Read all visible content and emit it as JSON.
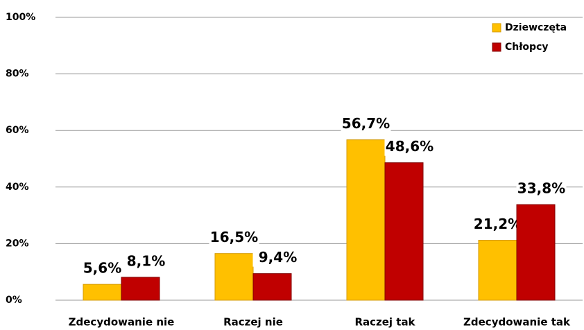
{
  "chart_data": {
    "type": "bar",
    "categories": [
      "Zdecydowanie nie",
      "Raczej nie",
      "Raczej tak",
      "Zdecydowanie tak"
    ],
    "series": [
      {
        "name": "Dziewczęta",
        "color": "#ffc000",
        "values": [
          5.6,
          16.5,
          56.7,
          21.2
        ],
        "value_labels": [
          "5,6%",
          "16,5%",
          "56,7%",
          "21,2%"
        ]
      },
      {
        "name": "Chłopcy",
        "color": "#c00000",
        "values": [
          8.1,
          9.4,
          48.6,
          33.8
        ],
        "value_labels": [
          "8,1%",
          "9,4%",
          "48,6%",
          "33,8%"
        ]
      }
    ],
    "ylim": [
      0,
      100
    ],
    "yticks": [
      {
        "value": 0,
        "label": "0%"
      },
      {
        "value": 20,
        "label": "20%"
      },
      {
        "value": 40,
        "label": "40%"
      },
      {
        "value": 60,
        "label": "60%"
      },
      {
        "value": 80,
        "label": "80%"
      },
      {
        "value": 100,
        "label": "100%"
      }
    ],
    "grid": true,
    "legend": "top-right"
  }
}
